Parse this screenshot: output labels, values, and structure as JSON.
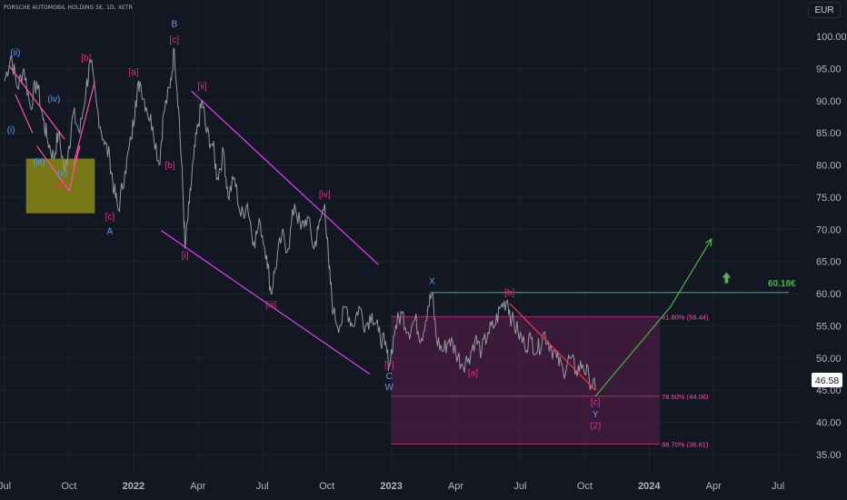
{
  "header": {
    "symbol_line": "PORSCHE AUTOMOBIL HOLDING SE, 1D, XETR"
  },
  "currency_button": "EUR",
  "chart_data": {
    "type": "line",
    "title": "PORSCHE AUTOMOBIL HOLDING SE, 1D, XETR",
    "currency": "EUR",
    "y_ticks": [
      100,
      95,
      90,
      85,
      80,
      75,
      70,
      65,
      60,
      55,
      50,
      45,
      40,
      35
    ],
    "y_tick_labels": [
      "100.00",
      "95.00",
      "90.00",
      "85.00",
      "80.00",
      "75.00",
      "70.00",
      "65.00",
      "60.00",
      "55.00",
      "50.00",
      "45.00",
      "40.00",
      "35.00"
    ],
    "ylim": [
      32.5,
      105
    ],
    "x_ticks": [
      {
        "label": "Jul",
        "t": 0,
        "bold": false
      },
      {
        "label": "Oct",
        "t": 3,
        "bold": false
      },
      {
        "label": "2022",
        "t": 6,
        "bold": true
      },
      {
        "label": "Apr",
        "t": 9,
        "bold": false
      },
      {
        "label": "Jul",
        "t": 12,
        "bold": false
      },
      {
        "label": "Oct",
        "t": 15,
        "bold": false
      },
      {
        "label": "2023",
        "t": 18,
        "bold": true
      },
      {
        "label": "Apr",
        "t": 21,
        "bold": false
      },
      {
        "label": "Jul",
        "t": 24,
        "bold": false
      },
      {
        "label": "Oct",
        "t": 27,
        "bold": false
      },
      {
        "label": "2024",
        "t": 30,
        "bold": true
      },
      {
        "label": "Apr",
        "t": 33,
        "bold": false
      },
      {
        "label": "Jul",
        "t": 36,
        "bold": false
      }
    ],
    "x_unit": "months since Jul 2021",
    "xlim": [
      0,
      37
    ],
    "series": [
      {
        "color": "#9598a1",
        "points": [
          [
            0.0,
            93
          ],
          [
            0.3,
            97
          ],
          [
            0.6,
            92
          ],
          [
            0.9,
            95
          ],
          [
            1.2,
            89
          ],
          [
            1.5,
            93
          ],
          [
            1.8,
            87
          ],
          [
            2.0,
            84
          ],
          [
            2.3,
            81
          ],
          [
            2.5,
            85
          ],
          [
            2.8,
            79
          ],
          [
            3.0,
            83
          ],
          [
            3.2,
            88
          ],
          [
            3.5,
            85
          ],
          [
            3.8,
            92
          ],
          [
            4.0,
            96
          ],
          [
            4.3,
            89
          ],
          [
            4.6,
            84
          ],
          [
            4.9,
            81
          ],
          [
            5.1,
            76
          ],
          [
            5.3,
            73
          ],
          [
            5.6,
            79
          ],
          [
            5.9,
            84
          ],
          [
            6.1,
            90
          ],
          [
            6.3,
            93
          ],
          [
            6.6,
            89
          ],
          [
            6.9,
            86
          ],
          [
            7.2,
            80
          ],
          [
            7.4,
            88
          ],
          [
            7.7,
            92
          ],
          [
            7.9,
            98
          ],
          [
            8.1,
            89
          ],
          [
            8.3,
            76
          ],
          [
            8.4,
            67
          ],
          [
            8.6,
            74
          ],
          [
            8.8,
            81
          ],
          [
            9.0,
            86
          ],
          [
            9.2,
            90
          ],
          [
            9.4,
            85
          ],
          [
            9.7,
            83
          ],
          [
            9.9,
            78
          ],
          [
            10.2,
            82
          ],
          [
            10.4,
            75
          ],
          [
            10.7,
            78
          ],
          [
            11.0,
            72
          ],
          [
            11.3,
            74
          ],
          [
            11.6,
            68
          ],
          [
            11.9,
            71
          ],
          [
            12.2,
            66
          ],
          [
            12.4,
            60
          ],
          [
            12.6,
            64
          ],
          [
            12.9,
            69
          ],
          [
            13.2,
            67
          ],
          [
            13.5,
            74
          ],
          [
            13.8,
            70
          ],
          [
            14.1,
            72
          ],
          [
            14.4,
            67
          ],
          [
            14.6,
            70
          ],
          [
            14.9,
            74
          ],
          [
            15.1,
            64
          ],
          [
            15.3,
            57
          ],
          [
            15.6,
            55
          ],
          [
            15.9,
            58
          ],
          [
            16.2,
            55
          ],
          [
            16.5,
            58
          ],
          [
            16.8,
            55
          ],
          [
            17.1,
            57
          ],
          [
            17.4,
            54
          ],
          [
            17.7,
            52
          ],
          [
            17.9,
            49
          ],
          [
            18.2,
            55
          ],
          [
            18.5,
            57
          ],
          [
            18.8,
            54
          ],
          [
            19.1,
            56
          ],
          [
            19.4,
            53
          ],
          [
            19.7,
            58
          ],
          [
            19.9,
            60
          ],
          [
            20.1,
            53
          ],
          [
            20.4,
            51
          ],
          [
            20.7,
            53
          ],
          [
            21.0,
            51
          ],
          [
            21.3,
            49
          ],
          [
            21.6,
            50
          ],
          [
            21.9,
            53
          ],
          [
            22.2,
            51
          ],
          [
            22.5,
            54
          ],
          [
            22.8,
            55
          ],
          [
            23.1,
            58
          ],
          [
            23.4,
            59
          ],
          [
            23.6,
            56
          ],
          [
            23.9,
            54
          ],
          [
            24.2,
            52
          ],
          [
            24.5,
            53
          ],
          [
            24.8,
            51
          ],
          [
            25.1,
            54
          ],
          [
            25.4,
            52
          ],
          [
            25.7,
            50
          ],
          [
            26.0,
            48
          ],
          [
            26.3,
            50
          ],
          [
            26.6,
            48
          ],
          [
            26.9,
            49
          ],
          [
            27.2,
            47
          ],
          [
            27.5,
            45
          ]
        ]
      }
    ],
    "annotations": {
      "fib_levels": [
        {
          "label": "61.80% (56.44)",
          "value": 56.44,
          "color": "#ff4fa8"
        },
        {
          "label": "78.60% (44.06)",
          "value": 44.06,
          "color": "#ff4fa8"
        },
        {
          "label": "88.70% (36.61)",
          "value": 36.61,
          "color": "#ff4fa8"
        }
      ],
      "fib_zone": {
        "t_from": 18,
        "t_to": 30.5,
        "from": 56.44,
        "to": 36.61,
        "color": "#5c1c4a"
      },
      "target_line": {
        "value": 60.18,
        "t_from": 19.8,
        "t_to": 36.5,
        "color": "#4caf50",
        "label": "60.18€"
      },
      "price_label": "46.58",
      "price_value": 46.58,
      "channel_upper": [
        [
          8.7,
          91.5
        ],
        [
          17.4,
          64.5
        ]
      ],
      "channel_lower": [
        [
          7.3,
          69.8
        ],
        [
          17.0,
          47.5
        ]
      ],
      "wave_lines": [
        {
          "color": "#ff4fa8",
          "points": [
            [
              0.2,
              95.5
            ],
            [
              2.8,
              84
            ]
          ]
        },
        {
          "color": "#ff4fa8",
          "points": [
            [
              3.2,
              80
            ],
            [
              4.2,
              93
            ]
          ]
        },
        {
          "color": "#ff4fa8",
          "points": [
            [
              0.5,
              91
            ],
            [
              1.3,
              85
            ]
          ]
        },
        {
          "color": "#ff4fa8",
          "points": [
            [
              1.5,
              83
            ],
            [
              3.0,
              76
            ]
          ]
        },
        {
          "color": "#ff4fa8",
          "points": [
            [
              3.0,
              76
            ],
            [
              3.5,
              83
            ]
          ]
        },
        {
          "color": "#ff4fa8",
          "points": [
            [
              3.5,
              83
            ],
            [
              3.2,
              79
            ]
          ]
        },
        {
          "color": "#f23645",
          "points": [
            [
              23.5,
              58.5
            ],
            [
              27.5,
              45
            ]
          ]
        }
      ],
      "projection": {
        "color": "#4caf50",
        "points": [
          [
            27.5,
            44.06
          ],
          [
            31.0,
            58
          ],
          [
            32.9,
            68.5
          ]
        ]
      },
      "highlight_box": {
        "t_from": 1.0,
        "t_to": 4.2,
        "top": 81,
        "bottom": 72.5,
        "color": "#8a8a14"
      },
      "target_arrow": {
        "t": 33.6,
        "value": 62.2,
        "color": "#4caf50"
      },
      "wave_labels": [
        {
          "text": "(ii)",
          "t": 0.5,
          "v": 97.0,
          "color": "#5b9cf6"
        },
        {
          "text": "(i)",
          "t": 0.3,
          "v": 85.0,
          "color": "#5b9cf6"
        },
        {
          "text": "(iii)",
          "t": 1.6,
          "v": 80.0,
          "color": "#5b9cf6"
        },
        {
          "text": "(iv)",
          "t": 2.3,
          "v": 89.8,
          "color": "#5b9cf6"
        },
        {
          "text": "(v)",
          "t": 2.7,
          "v": 78.3,
          "color": "#5b9cf6"
        },
        {
          "text": "[a]",
          "t": 2.6,
          "v": 76.5,
          "color": "#f23645"
        },
        {
          "text": "[b]",
          "t": 3.8,
          "v": 96.2,
          "color": "#d63384"
        },
        {
          "text": "[c]",
          "t": 4.9,
          "v": 71.5,
          "color": "#d63384"
        },
        {
          "text": "A",
          "t": 4.9,
          "v": 69.3,
          "color": "#5b9cf6"
        },
        {
          "text": "[a]",
          "t": 6.0,
          "v": 94.0,
          "color": "#d63384"
        },
        {
          "text": "B",
          "t": 7.9,
          "v": 101.5,
          "color": "#5b9cf6"
        },
        {
          "text": "[c]",
          "t": 7.9,
          "v": 99.0,
          "color": "#d63384"
        },
        {
          "text": "[b]",
          "t": 7.7,
          "v": 79.5,
          "color": "#d63384"
        },
        {
          "text": "[ii]",
          "t": 9.2,
          "v": 91.8,
          "color": "#d63384"
        },
        {
          "text": "[i]",
          "t": 8.4,
          "v": 65.5,
          "color": "#d63384"
        },
        {
          "text": "[iii]",
          "t": 12.4,
          "v": 57.8,
          "color": "#d63384"
        },
        {
          "text": "[iv]",
          "t": 14.9,
          "v": 75.0,
          "color": "#d63384"
        },
        {
          "text": "[v]",
          "t": 17.9,
          "v": 48.5,
          "color": "#d63384"
        },
        {
          "text": "C",
          "t": 17.9,
          "v": 46.7,
          "color": "#5b9cf6"
        },
        {
          "text": "W",
          "t": 17.9,
          "v": 45.0,
          "color": "#5b9cf6"
        },
        {
          "text": "X",
          "t": 19.9,
          "v": 61.5,
          "color": "#5b9cf6"
        },
        {
          "text": "[b]",
          "t": 23.5,
          "v": 59.7,
          "color": "#d63384"
        },
        {
          "text": "[a]",
          "t": 21.8,
          "v": 47.2,
          "color": "#d63384"
        },
        {
          "text": "[c]",
          "t": 27.5,
          "v": 42.7,
          "color": "#d63384"
        },
        {
          "text": "Y",
          "t": 27.5,
          "v": 40.8,
          "color": "#5b9cf6"
        },
        {
          "text": "(2)",
          "t": 27.5,
          "v": 39.0,
          "color": "#d63384"
        }
      ]
    }
  }
}
